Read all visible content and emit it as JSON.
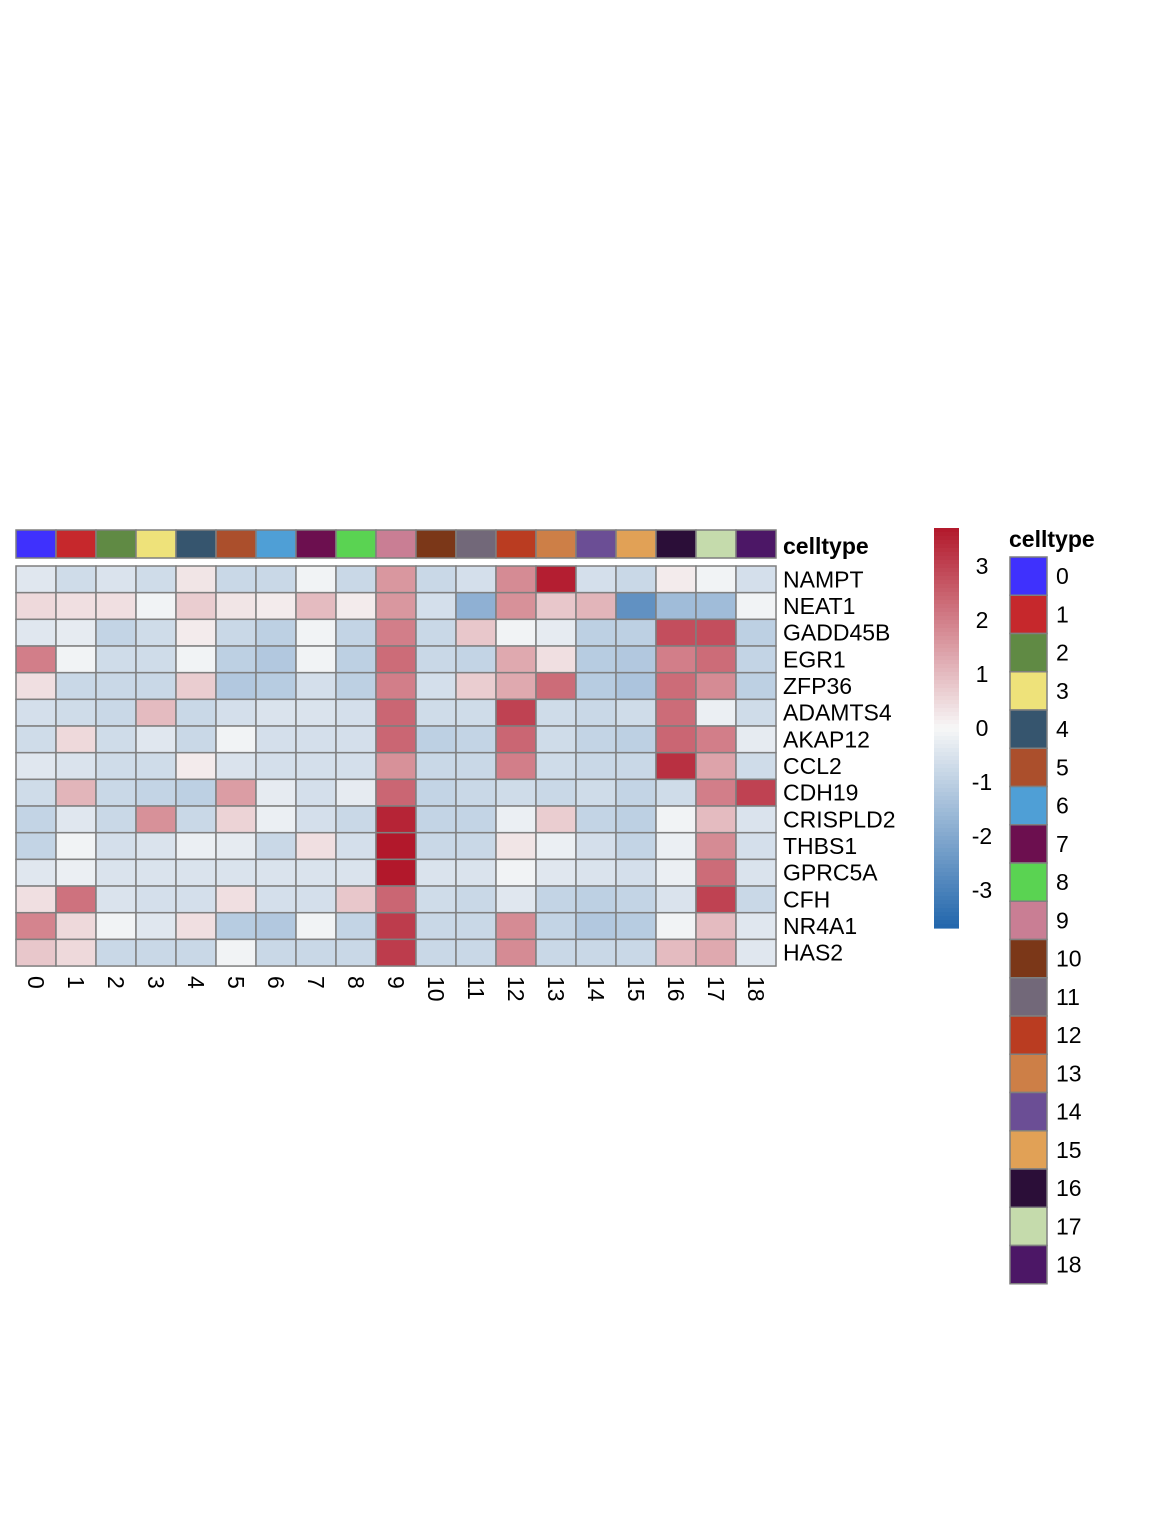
{
  "chart_data": {
    "type": "heatmap",
    "annotation_title": "celltype",
    "legend_title": "celltype",
    "columns": [
      "0",
      "1",
      "2",
      "3",
      "4",
      "5",
      "6",
      "7",
      "8",
      "9",
      "10",
      "11",
      "12",
      "13",
      "14",
      "15",
      "16",
      "17",
      "18"
    ],
    "rows": [
      "NAMPT",
      "NEAT1",
      "GADD45B",
      "EGR1",
      "ZFP36",
      "ADAMTS4",
      "AKAP12",
      "CCL2",
      "CDH19",
      "CRISPLD2",
      "THBS1",
      "GPRC5A",
      "CFH",
      "NR4A1",
      "HAS2"
    ],
    "values": [
      [
        -0.4,
        -0.7,
        -0.5,
        -0.7,
        0.3,
        -0.8,
        -0.8,
        -0.1,
        -0.8,
        1.6,
        -0.8,
        -0.6,
        1.8,
        3.6,
        -0.6,
        -0.8,
        0.2,
        -0.1,
        -0.6
      ],
      [
        0.5,
        0.4,
        0.4,
        -0.1,
        0.7,
        0.3,
        0.2,
        1.0,
        0.2,
        1.6,
        -0.6,
        -1.8,
        1.7,
        0.8,
        1.1,
        -2.6,
        -1.5,
        -1.5,
        -0.1
      ],
      [
        -0.4,
        -0.3,
        -0.9,
        -0.7,
        0.2,
        -0.8,
        -1.0,
        -0.1,
        -0.9,
        2.0,
        -0.8,
        0.8,
        -0.1,
        -0.3,
        -1.0,
        -1.0,
        2.8,
        2.8,
        -1.0
      ],
      [
        2.0,
        -0.1,
        -0.7,
        -0.7,
        -0.1,
        -1.0,
        -1.2,
        -0.1,
        -1.0,
        2.3,
        -0.8,
        -0.9,
        1.3,
        0.4,
        -1.1,
        -1.2,
        2.0,
        2.3,
        -0.9
      ],
      [
        0.4,
        -0.8,
        -0.8,
        -0.8,
        0.7,
        -1.2,
        -1.1,
        -0.6,
        -1.0,
        2.0,
        -0.6,
        0.7,
        1.3,
        2.3,
        -1.1,
        -1.3,
        2.3,
        1.8,
        -1.0
      ],
      [
        -0.6,
        -0.7,
        -0.8,
        1.0,
        -0.8,
        -0.6,
        -0.5,
        -0.5,
        -0.6,
        2.4,
        -0.7,
        -0.7,
        3.0,
        -0.7,
        -0.8,
        -0.7,
        2.3,
        -0.2,
        -0.7
      ],
      [
        -0.7,
        0.5,
        -0.7,
        -0.4,
        -0.8,
        -0.1,
        -0.6,
        -0.6,
        -0.6,
        2.4,
        -1.0,
        -0.9,
        2.4,
        -0.7,
        -0.9,
        -1.0,
        2.4,
        2.0,
        -0.3
      ],
      [
        -0.4,
        -0.5,
        -0.7,
        -0.7,
        0.2,
        -0.5,
        -0.6,
        -0.6,
        -0.6,
        1.7,
        -0.8,
        -0.8,
        2.0,
        -0.7,
        -0.8,
        -0.8,
        3.3,
        1.4,
        -0.7
      ],
      [
        -0.7,
        1.1,
        -0.8,
        -0.9,
        -1.0,
        1.5,
        -0.3,
        -0.6,
        -0.3,
        2.4,
        -0.9,
        -0.8,
        -0.7,
        -0.8,
        -0.7,
        -0.9,
        -0.7,
        2.0,
        3.0
      ],
      [
        -0.9,
        -0.4,
        -0.8,
        1.7,
        -0.8,
        0.6,
        -0.2,
        -0.6,
        -0.8,
        3.5,
        -0.9,
        -0.9,
        -0.2,
        0.7,
        -0.9,
        -1.0,
        -0.1,
        1.0,
        -0.5
      ],
      [
        -0.9,
        -0.1,
        -0.6,
        -0.5,
        -0.2,
        -0.3,
        -0.8,
        0.4,
        -0.6,
        3.7,
        -0.8,
        -0.8,
        0.3,
        -0.2,
        -0.6,
        -0.9,
        -0.2,
        1.8,
        -0.6
      ],
      [
        -0.4,
        -0.2,
        -0.5,
        -0.5,
        -0.5,
        -0.5,
        -0.5,
        -0.5,
        -0.5,
        3.7,
        -0.5,
        -0.5,
        -0.1,
        -0.4,
        -0.5,
        -0.6,
        -0.2,
        2.3,
        -0.5
      ],
      [
        0.4,
        2.2,
        -0.5,
        -0.6,
        -0.6,
        0.4,
        -0.6,
        -0.6,
        0.8,
        2.4,
        -0.7,
        -0.8,
        -0.4,
        -0.9,
        -1.0,
        -0.9,
        -0.5,
        3.0,
        -0.8
      ],
      [
        1.9,
        0.5,
        -0.1,
        -0.4,
        0.4,
        -1.1,
        -1.2,
        -0.1,
        -0.9,
        3.1,
        -0.8,
        -0.8,
        1.8,
        -0.9,
        -1.2,
        -1.1,
        -0.1,
        1.0,
        -0.4
      ],
      [
        0.8,
        0.5,
        -0.8,
        -0.8,
        -0.8,
        -0.1,
        -0.8,
        -0.8,
        -0.8,
        3.1,
        -0.8,
        -0.8,
        1.8,
        -0.8,
        -0.8,
        -0.8,
        1.0,
        1.3,
        -0.4
      ]
    ],
    "celltype_colors": [
      "#3f31fd",
      "#c6282c",
      "#608a44",
      "#eee27a",
      "#36556e",
      "#ab4f2c",
      "#4f9fd6",
      "#6c0f4f",
      "#5ad352",
      "#c97e94",
      "#7b3718",
      "#726879",
      "#ba3c21",
      "#cd7f47",
      "#6b4e95",
      "#e1a156",
      "#2b0e38",
      "#c5dbac",
      "#4c1766"
    ],
    "colorbar": {
      "ticks": [
        "3",
        "2",
        "1",
        "0",
        "-1",
        "-2",
        "-3"
      ],
      "tick_values": [
        3,
        2,
        1,
        0,
        -1,
        -2,
        -3
      ],
      "range": [
        -3.7,
        3.7
      ],
      "palette": [
        "#2166ac",
        "#f7f7f7",
        "#b2182b"
      ]
    }
  }
}
